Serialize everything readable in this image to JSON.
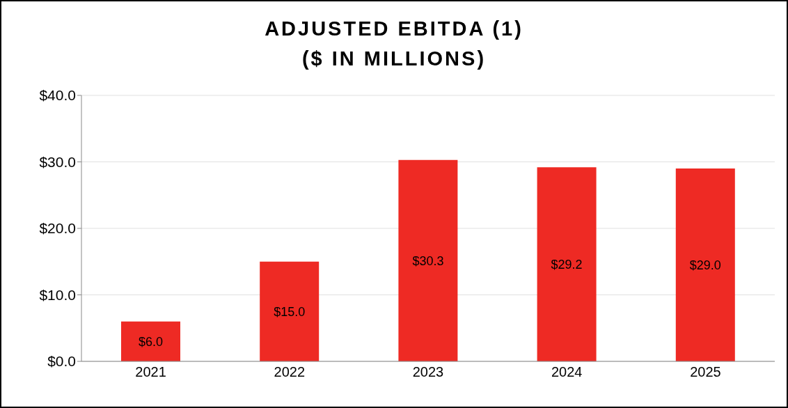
{
  "chart_data": {
    "type": "bar",
    "title": "ADJUSTED EBITDA (1)",
    "subtitle": "($ IN MILLIONS)",
    "categories": [
      "2021",
      "2022",
      "2023",
      "2024",
      "2025"
    ],
    "values": [
      6.0,
      15.0,
      30.3,
      29.2,
      29.0
    ],
    "value_labels": [
      "$6.0",
      "$15.0",
      "$30.3",
      "$29.2",
      "$29.0"
    ],
    "color": "#ee2a24",
    "ylim": [
      0,
      40
    ],
    "yticks": [
      {
        "value": 0,
        "label": "$0.0"
      },
      {
        "value": 10,
        "label": "$10.0"
      },
      {
        "value": 20,
        "label": "$20.0"
      },
      {
        "value": 30,
        "label": "$30.0"
      },
      {
        "value": 40,
        "label": "$40.0"
      }
    ],
    "grid": "y",
    "legend": false
  }
}
